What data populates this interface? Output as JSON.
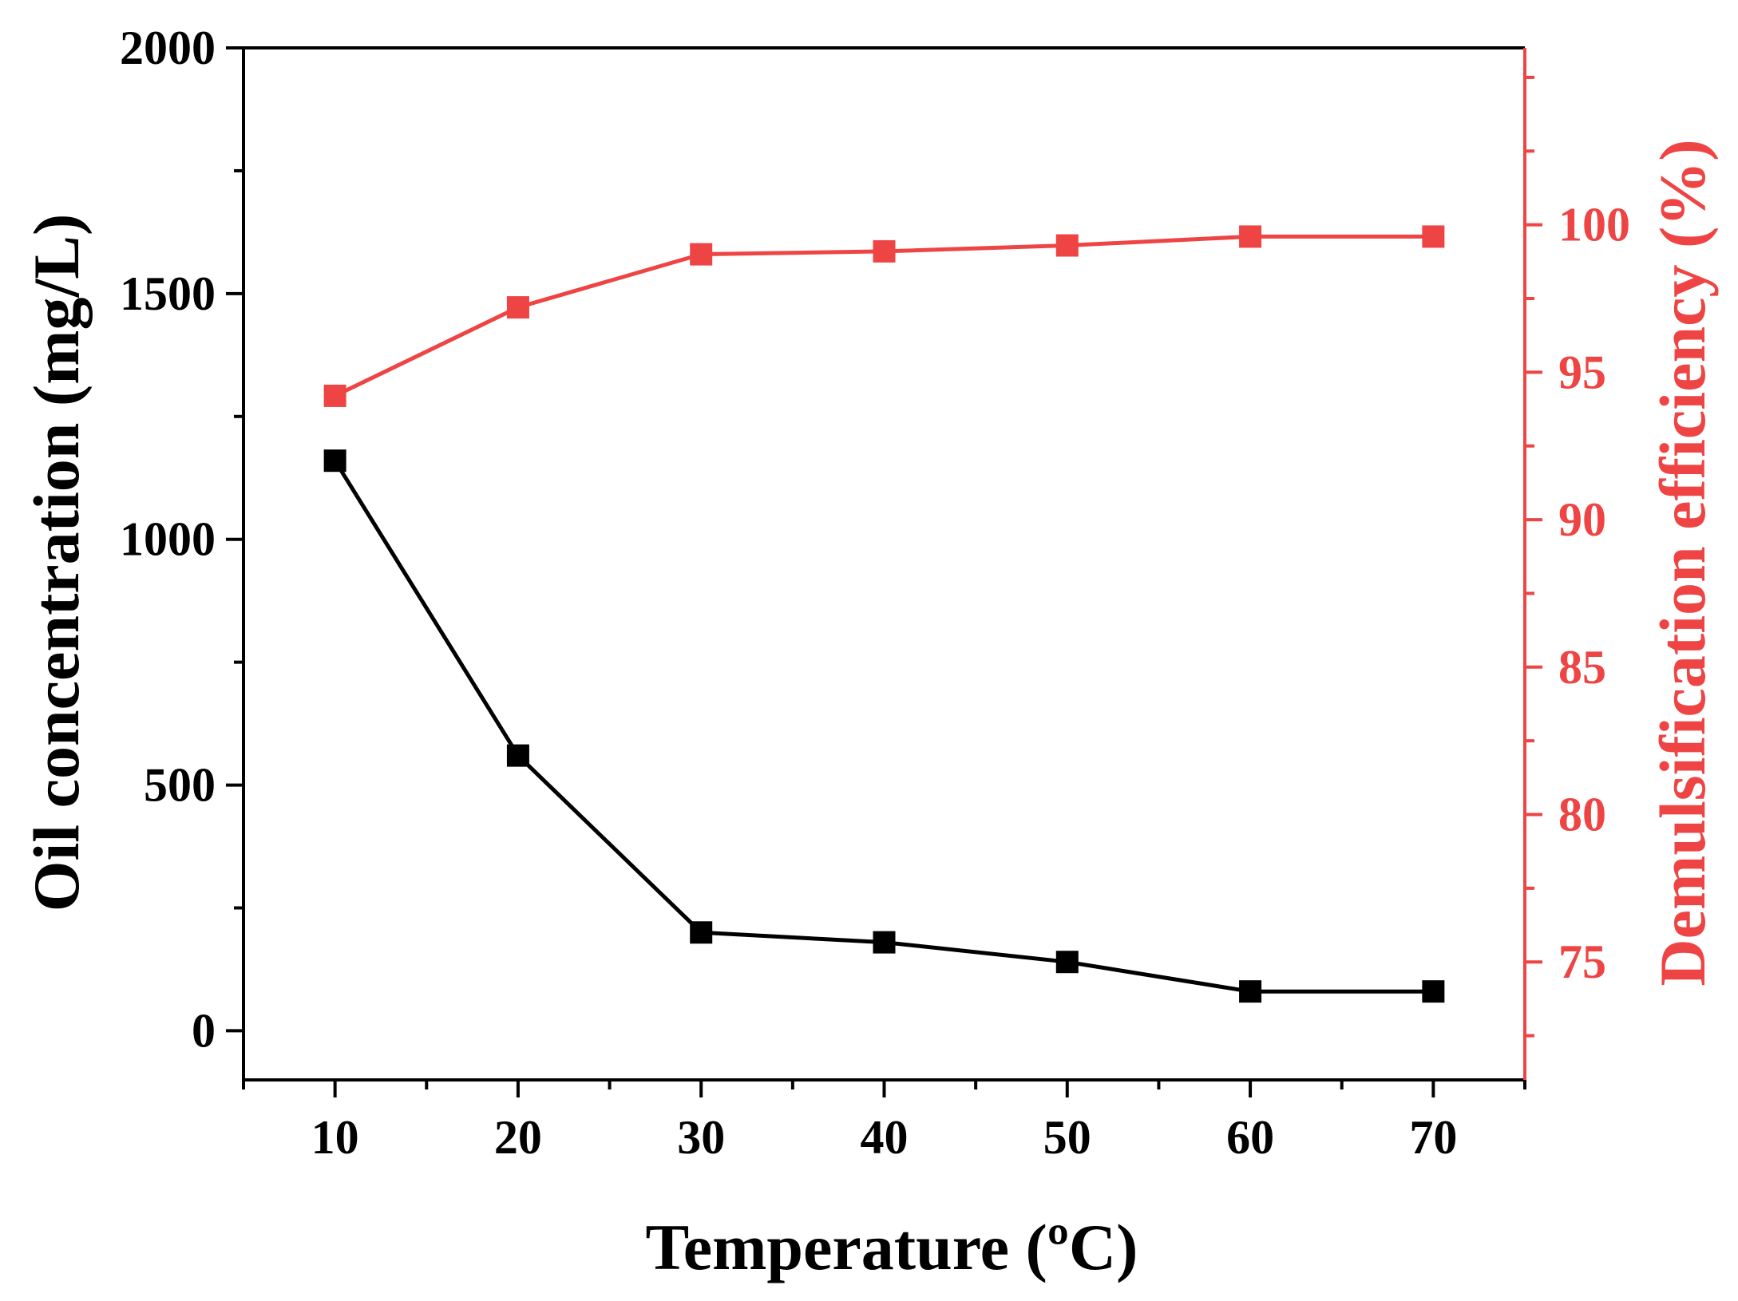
{
  "chart_data": {
    "type": "line",
    "title": "",
    "xlabel": "Temperature (ºC)",
    "ylabel": "Oil concentration (mg/L)",
    "y2label": "Demulsification efficiency (%)",
    "x": [
      10,
      20,
      30,
      40,
      50,
      60,
      70
    ],
    "xlim": [
      5,
      75
    ],
    "ylim": [
      -100,
      2000
    ],
    "y2lim": [
      71,
      106
    ],
    "xticks": [
      10,
      20,
      30,
      40,
      50,
      60,
      70
    ],
    "yticks": [
      0,
      500,
      1000,
      1500,
      2000
    ],
    "y2ticks": [
      75,
      80,
      85,
      90,
      95,
      100
    ],
    "grid": false,
    "legend": "none",
    "series": [
      {
        "name": "Oil concentration",
        "axis": "left",
        "color": "#000000",
        "marker": "square",
        "values": [
          1160,
          560,
          200,
          180,
          140,
          80,
          80
        ]
      },
      {
        "name": "Demulsification efficiency",
        "axis": "right",
        "color": "#ef4444",
        "marker": "square",
        "values": [
          94.2,
          97.2,
          99.0,
          99.1,
          99.3,
          99.6,
          99.6
        ]
      }
    ]
  }
}
